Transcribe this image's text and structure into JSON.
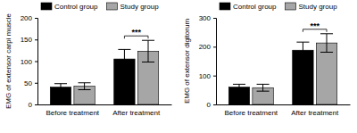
{
  "chart_data": [
    {
      "type": "bar",
      "y_label": "EMG of extensor carpi muscle",
      "categories": [
        "Before treatment",
        "After treatment"
      ],
      "series": [
        {
          "name": "Control group",
          "color": "#000000",
          "values": [
            40,
            105
          ],
          "errors": [
            8,
            22
          ]
        },
        {
          "name": "Study group",
          "color": "#a6a6a6",
          "values": [
            42,
            123
          ],
          "errors": [
            8,
            25
          ]
        }
      ],
      "ylim": [
        0,
        200
      ],
      "yticks": [
        0,
        50,
        100,
        150,
        200
      ],
      "legend": "top",
      "annotations": [
        {
          "text": "***",
          "category": "After treatment"
        }
      ]
    },
    {
      "type": "bar",
      "y_label": "EMG of extensor digitorum",
      "categories": [
        "Before treatment",
        "After treatment"
      ],
      "series": [
        {
          "name": "Control group",
          "color": "#000000",
          "values": [
            60,
            188
          ],
          "errors": [
            10,
            28
          ]
        },
        {
          "name": "Study group",
          "color": "#a6a6a6",
          "values": [
            58,
            213
          ],
          "errors": [
            12,
            32
          ]
        }
      ],
      "ylim": [
        0,
        300
      ],
      "yticks": [
        0,
        100,
        200,
        300
      ],
      "legend": "top",
      "annotations": [
        {
          "text": "***",
          "category": "After treatment"
        }
      ]
    }
  ]
}
